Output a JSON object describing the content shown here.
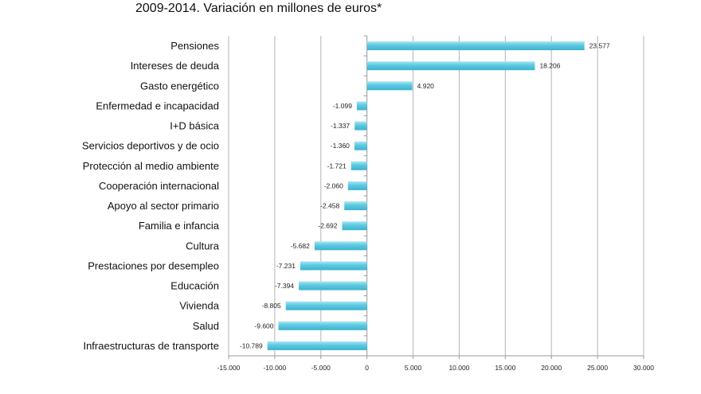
{
  "chart_data": {
    "type": "bar",
    "orientation": "horizontal",
    "title": "2009-2014. Variación en millones de euros*",
    "xlabel": "",
    "ylabel": "",
    "xlim": [
      -15000,
      30000
    ],
    "xticks": [
      -15000,
      -10000,
      -5000,
      0,
      5000,
      10000,
      15000,
      20000,
      25000,
      30000
    ],
    "xtick_labels": [
      "-15.000",
      "-10.000",
      "-5.000",
      "0",
      "5.000",
      "10.000",
      "15.000",
      "20.000",
      "25.000",
      "30.000"
    ],
    "grid": true,
    "bar_color": "#5bc8e0",
    "categories": [
      "Pensiones",
      "Intereses de deuda",
      "Gasto energético",
      "Enfermedad e incapacidad",
      "I+D básica",
      "Servicios deportivos y de ocio",
      "Protección al medio ambiente",
      "Cooperación internacional",
      "Apoyo al sector primario",
      "Familia e infancia",
      "Cultura",
      "Prestaciones por desempleo",
      "Educación",
      "Vivienda",
      "Salud",
      "Infraestructuras de transporte"
    ],
    "values": [
      23577,
      18206,
      4920,
      -1099,
      -1337,
      -1360,
      -1721,
      -2060,
      -2458,
      -2692,
      -5682,
      -7231,
      -7394,
      -8805,
      -9600,
      -10789
    ],
    "value_labels": [
      "23.577",
      "18.206",
      "4.920",
      "-1.099",
      "-1.337",
      "-1.360",
      "-1.721",
      "-2.060",
      "-2.458",
      "-2.692",
      "-5.682",
      "-7.231",
      "-7.394",
      "-8.805",
      "-9.600",
      "-10.789"
    ]
  }
}
